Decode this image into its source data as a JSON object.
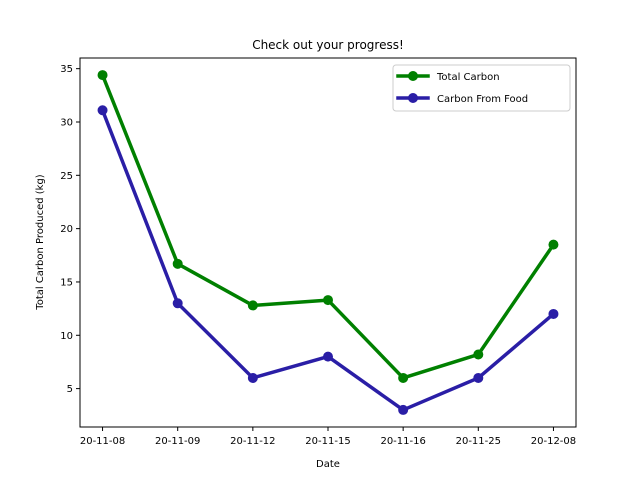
{
  "chart_data": {
    "type": "line",
    "title": "Check out your progress!",
    "xlabel": "Date",
    "ylabel": "Total Carbon Produced (kg)",
    "categories": [
      "20-11-08",
      "20-11-09",
      "20-11-12",
      "20-11-15",
      "20-11-16",
      "20-11-25",
      "20-12-08"
    ],
    "ylim": [
      1.4,
      36.0
    ],
    "yticks": [
      5,
      10,
      15,
      20,
      25,
      30,
      35
    ],
    "grid": false,
    "legend_position": "top-right",
    "series": [
      {
        "name": "Total Carbon",
        "color": "#008000",
        "marker": "circle",
        "values": [
          34.4,
          16.7,
          12.8,
          13.3,
          6.0,
          8.2,
          18.5
        ]
      },
      {
        "name": "Carbon From Food",
        "color": "#2a1ea6",
        "marker": "circle",
        "values": [
          31.1,
          13.0,
          6.0,
          8.0,
          3.0,
          6.0,
          12.0
        ]
      }
    ]
  }
}
